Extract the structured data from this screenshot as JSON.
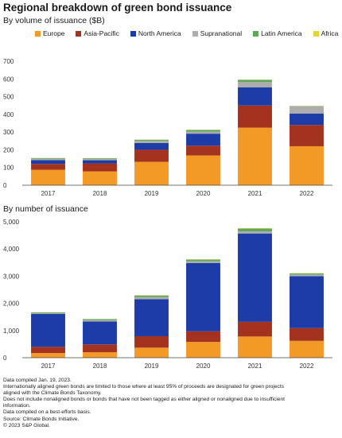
{
  "title": "Regional breakdown of green bond issuance",
  "subtitle_volume": "By volume of issuance ($B)",
  "subtitle_number": "By number of issuance",
  "legend": [
    {
      "label": "Europe",
      "color": "#f39a26"
    },
    {
      "label": "Asia-Pacific",
      "color": "#a3331f"
    },
    {
      "label": "North America",
      "color": "#1e3ca8"
    },
    {
      "label": "Supranational",
      "color": "#adadad"
    },
    {
      "label": "Latin America",
      "color": "#5da85a"
    },
    {
      "label": "Africa",
      "color": "#e8d23a"
    }
  ],
  "notes": [
    "Data compiled Jan. 19, 2023.",
    "Internationally aligned green bonds are limited to those where at least 95% of proceeds are designated for green projects",
    "aligned with the Climate Bonds Taxonomy.",
    "Does not include nonaligned bonds or bonds that have not been tagged as either aligned or nonaligned due to insufficient",
    "information.",
    "Data compiled on a best-efforts basis.",
    "Source: Climate Bonds Initiative.",
    "© 2023 S&P Global."
  ],
  "chart_data": [
    {
      "type": "bar",
      "stacked": true,
      "title": "By volume of issuance ($B)",
      "categories": [
        "2017",
        "2018",
        "2019",
        "2020",
        "2021",
        "2022"
      ],
      "ylim": [
        0,
        700
      ],
      "yticks": [
        "0",
        "100",
        "200",
        "300",
        "400",
        "500",
        "600",
        "700"
      ],
      "grid": false,
      "legend_position": "top",
      "series": [
        {
          "name": "Europe",
          "values": [
            87,
            78,
            132,
            168,
            325,
            220
          ]
        },
        {
          "name": "Asia-Pacific",
          "values": [
            33,
            45,
            68,
            55,
            125,
            120
          ]
        },
        {
          "name": "North America",
          "values": [
            22,
            18,
            38,
            68,
            103,
            65
          ]
        },
        {
          "name": "Supranational",
          "values": [
            7,
            7,
            12,
            12,
            30,
            40
          ]
        },
        {
          "name": "Latin America",
          "values": [
            4,
            4,
            7,
            9,
            12,
            2
          ]
        },
        {
          "name": "Africa",
          "values": [
            1,
            1,
            1,
            1,
            1,
            1
          ]
        }
      ]
    },
    {
      "type": "bar",
      "stacked": true,
      "title": "By number of issuance",
      "categories": [
        "2017",
        "2018",
        "2019",
        "2020",
        "2021",
        "2022"
      ],
      "ylim": [
        0,
        5000
      ],
      "yticks": [
        "0",
        "1,000",
        "2,000",
        "3,000",
        "4,000",
        "5,000"
      ],
      "grid": false,
      "series": [
        {
          "name": "Europe",
          "values": [
            170,
            200,
            370,
            580,
            780,
            620
          ]
        },
        {
          "name": "Asia-Pacific",
          "values": [
            230,
            290,
            420,
            390,
            540,
            470
          ]
        },
        {
          "name": "North America",
          "values": [
            1210,
            840,
            1360,
            2510,
            3250,
            1910
          ]
        },
        {
          "name": "Supranational",
          "values": [
            30,
            50,
            80,
            70,
            80,
            60
          ]
        },
        {
          "name": "Latin America",
          "values": [
            30,
            40,
            60,
            60,
            100,
            40
          ]
        },
        {
          "name": "Africa",
          "values": [
            5,
            5,
            10,
            10,
            15,
            10
          ]
        }
      ]
    }
  ]
}
